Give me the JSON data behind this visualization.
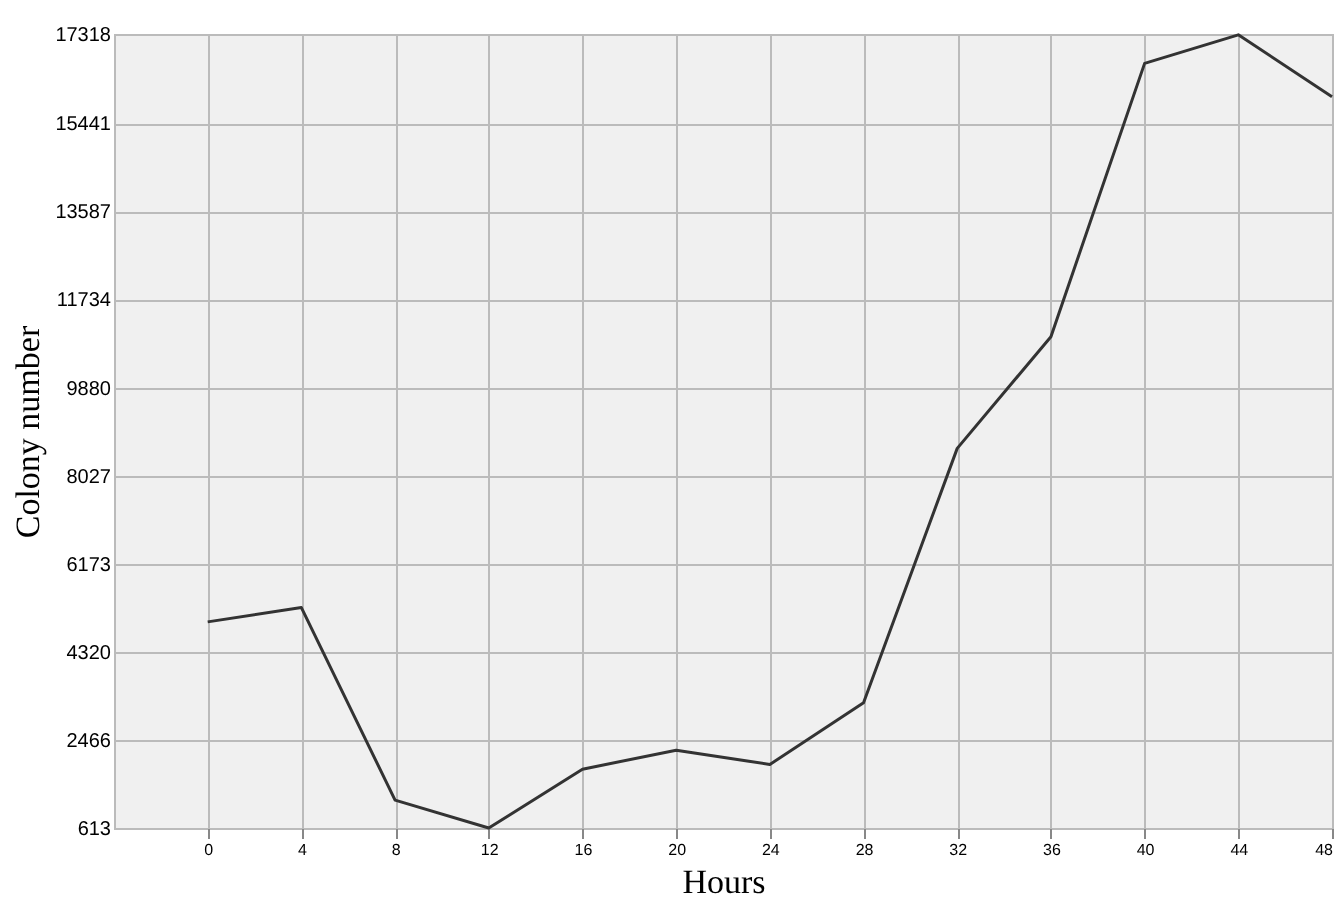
{
  "chart_data": {
    "type": "line",
    "xlabel": "Hours",
    "ylabel": "Colony number",
    "x": [
      0,
      4,
      8,
      12,
      16,
      20,
      24,
      28,
      32,
      36,
      40,
      44,
      48
    ],
    "series": [
      {
        "color": "#333333",
        "values": [
          4950,
          5250,
          1200,
          613,
          1850,
          2250,
          1950,
          3250,
          8600,
          10950,
          16700,
          17300,
          16000
        ]
      }
    ],
    "xlim": [
      -4,
      48
    ],
    "xticks": [
      0,
      4,
      8,
      12,
      16,
      20,
      24,
      28,
      32,
      36,
      40,
      44,
      48
    ],
    "ylim": [
      613,
      17318
    ],
    "yticks": [
      613,
      2466,
      4320,
      6173,
      8027,
      9880,
      11734,
      13587,
      15441,
      17318
    ],
    "grid": true,
    "marker": "none",
    "line_style": "solid"
  }
}
